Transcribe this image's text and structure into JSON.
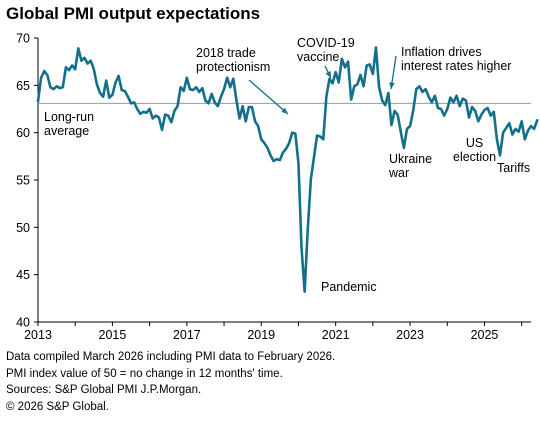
{
  "title": "Global PMI output expectations",
  "chart_data": {
    "type": "line",
    "title": "Global PMI output expectations",
    "xlabel": "",
    "ylabel": "",
    "xlim": [
      2013.0,
      2026.25
    ],
    "ylim": [
      40,
      70
    ],
    "x_ticks": [
      2013,
      2015,
      2017,
      2019,
      2021,
      2023,
      2025
    ],
    "x_tick_labels": [
      "2013",
      "2015",
      "2017",
      "2019",
      "2021",
      "2023",
      "2025"
    ],
    "y_ticks": [
      40,
      45,
      50,
      55,
      60,
      65,
      70
    ],
    "y_tick_labels": [
      "40",
      "45",
      "50",
      "55",
      "60",
      "65",
      "70"
    ],
    "grid": false,
    "line_color": "#13708a",
    "reference_line": {
      "label": "Long-run average",
      "value": 63.1,
      "color": "#999999"
    },
    "series": [
      {
        "start": "2013-01",
        "values": [
          63.3,
          65.8,
          66.5,
          66.1,
          64.8,
          64.6,
          64.9,
          64.7,
          64.8,
          66.9,
          66.6,
          67.1,
          66.7,
          68.9,
          67.6,
          67.9,
          67.3,
          67.6,
          66.7,
          65.1,
          64.2,
          63.8,
          65.5,
          63.7,
          64.0,
          65.3,
          66.0,
          64.5,
          64.4,
          63.8,
          63.1,
          63.2,
          62.5,
          62.0,
          62.2,
          62.1,
          62.5,
          61.5,
          61.8,
          61.6,
          60.3,
          61.9,
          61.8,
          61.1,
          62.3,
          62.8,
          64.8,
          64.4,
          65.8,
          64.6,
          64.5,
          64.8,
          64.3,
          64.7,
          63.4,
          63.1,
          64.1,
          63.2,
          62.8,
          63.8,
          64.6,
          65.8,
          64.8,
          65.7,
          63.4,
          61.5,
          62.8,
          61.2,
          62.7,
          62.7,
          61.2,
          60.7,
          59.3,
          58.9,
          58.4,
          57.6,
          57.0,
          57.2,
          57.1,
          57.9,
          58.3,
          58.9,
          60.0,
          59.9,
          56.8,
          47.8,
          43.2,
          49.8,
          55.1,
          57.4,
          59.7,
          59.6,
          59.3,
          63.8,
          65.7,
          65.2,
          66.4,
          65.3,
          67.8,
          66.9,
          67.5,
          63.5,
          64.9,
          65.1,
          66.1,
          64.9,
          67.1,
          67.2,
          66.2,
          69.0,
          64.8,
          63.4,
          62.9,
          64.2,
          60.8,
          62.3,
          61.9,
          60.1,
          58.4,
          60.4,
          60.7,
          62.3,
          64.6,
          64.9,
          64.3,
          64.6,
          63.8,
          63.2,
          63.9,
          62.6,
          62.5,
          61.8,
          62.5,
          63.7,
          63.2,
          63.9,
          62.8,
          63.6,
          63.4,
          61.6,
          62.7,
          62.3,
          61.2,
          61.9,
          62.4,
          62.6,
          61.8,
          62.2,
          59.3,
          57.6,
          60.0,
          60.5,
          61.0,
          59.8,
          60.4,
          60.1,
          61.2,
          59.3,
          60.2,
          60.7,
          60.4,
          61.3
        ]
      }
    ],
    "annotations": [
      {
        "text": "Long-run\naverage"
      },
      {
        "text": "2018 trade\nprotectionism",
        "arrow": true
      },
      {
        "text": "COVID-19\nvaccine",
        "arrow": true
      },
      {
        "text": "Inflation drives\ninterest rates higher",
        "arrow": true
      },
      {
        "text": "Pandemic"
      },
      {
        "text": "Ukraine\nwar"
      },
      {
        "text": "US\nelection"
      },
      {
        "text": "Tariffs"
      }
    ]
  },
  "footer": [
    "Data compiled March 2026 including PMI data to February 2026.",
    "PMI index value of 50 = no change in 12 months' time.",
    "Sources: S&P Global PMI J.P.Morgan.",
    "© 2026 S&P Global."
  ]
}
